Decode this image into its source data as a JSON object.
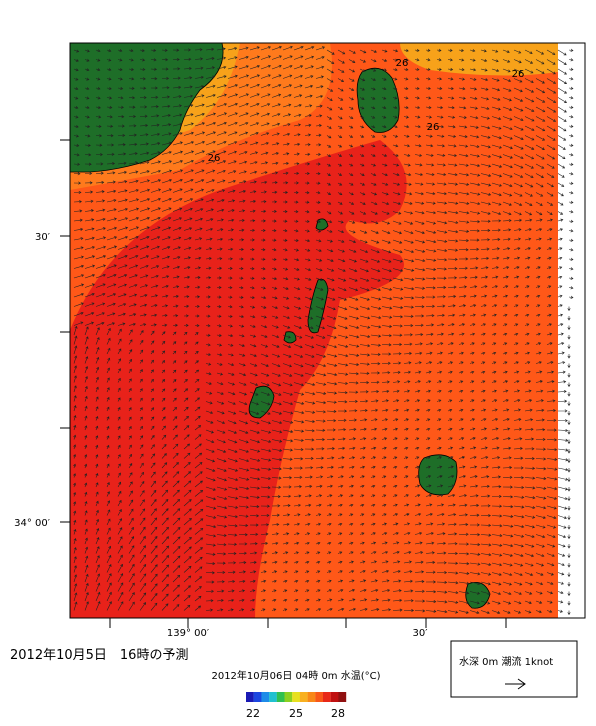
{
  "map": {
    "y_labels": [
      "30′",
      "34° 00′"
    ],
    "x_labels": [
      "139° 00′",
      "30′"
    ],
    "contour_labels": [
      "26",
      "26",
      "26",
      "26"
    ]
  },
  "caption": "2012年10月5日　16時の予測",
  "colorbar": {
    "title": "2012年10月06日 04時 0m 水温(°C)",
    "ticks": [
      "22",
      "25",
      "28"
    ]
  },
  "legend": {
    "text": "水深 0m 潮流 1knot"
  }
}
